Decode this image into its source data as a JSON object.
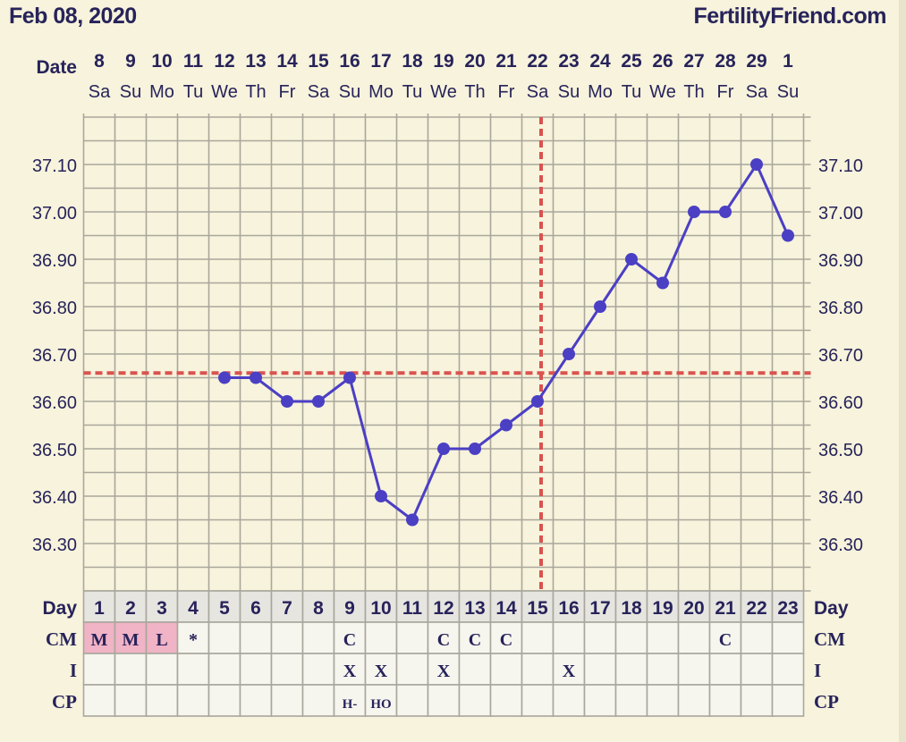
{
  "header": {
    "date": "Feb 08, 2020",
    "brand": "FertilityFriend.com"
  },
  "labels": {
    "date": "Date",
    "day": "Day",
    "cm": "CM",
    "i": "I",
    "cp": "CP"
  },
  "colors": {
    "line": "#4b3fc4",
    "coverline": "#d9534f",
    "grid": "#a9a79c",
    "text": "#27235a",
    "menses": "#f1b3c6",
    "cell": "#f6f6ef",
    "dayrow": "#e6e5e0"
  },
  "chart_data": {
    "type": "line",
    "title": "Feb 08, 2020",
    "dates": [
      "8",
      "9",
      "10",
      "11",
      "12",
      "13",
      "14",
      "15",
      "16",
      "17",
      "18",
      "19",
      "20",
      "21",
      "22",
      "23",
      "24",
      "25",
      "26",
      "27",
      "28",
      "29",
      "1"
    ],
    "weekdays": [
      "Sa",
      "Su",
      "Mo",
      "Tu",
      "We",
      "Th",
      "Fr",
      "Sa",
      "Su",
      "Mo",
      "Tu",
      "We",
      "Th",
      "Fr",
      "Sa",
      "Su",
      "Mo",
      "Tu",
      "We",
      "Th",
      "Fr",
      "Sa",
      "Su"
    ],
    "days": [
      "1",
      "2",
      "3",
      "4",
      "5",
      "6",
      "7",
      "8",
      "9",
      "10",
      "11",
      "12",
      "13",
      "14",
      "15",
      "16",
      "17",
      "18",
      "19",
      "20",
      "21",
      "22",
      "23"
    ],
    "temperatures": [
      null,
      null,
      null,
      null,
      36.65,
      36.65,
      36.6,
      36.6,
      36.65,
      36.4,
      36.35,
      36.5,
      36.5,
      36.55,
      36.6,
      36.7,
      36.8,
      36.9,
      36.85,
      37.0,
      37.0,
      37.1,
      36.95
    ],
    "ylim": [
      36.2,
      37.2
    ],
    "yticks": [
      "37.10",
      "37.00",
      "36.90",
      "36.80",
      "36.70",
      "36.60",
      "36.50",
      "36.40",
      "36.30"
    ],
    "coverline": 36.66,
    "ovulation_day": 15,
    "grid": true,
    "cm": [
      "M",
      "M",
      "L",
      "*",
      "",
      "",
      "",
      "",
      "C",
      "",
      "",
      "C",
      "C",
      "C",
      "",
      "",
      "",
      "",
      "",
      "",
      "C",
      "",
      ""
    ],
    "menses_days": [
      1,
      2,
      3
    ],
    "intercourse": [
      "",
      "",
      "",
      "",
      "",
      "",
      "",
      "",
      "X",
      "X",
      "",
      "X",
      "",
      "",
      "",
      "X",
      "",
      "",
      "",
      "",
      "",
      "",
      ""
    ],
    "cp": [
      "",
      "",
      "",
      "",
      "",
      "",
      "",
      "",
      "H-",
      "HO",
      "",
      "",
      "",
      "",
      "",
      "",
      "",
      "",
      "",
      "",
      "",
      "",
      ""
    ]
  }
}
